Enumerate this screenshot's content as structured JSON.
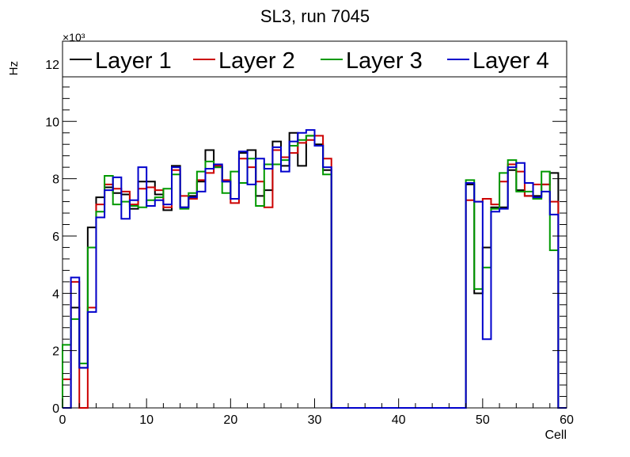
{
  "chart_data": {
    "type": "step-histogram",
    "title": "SL3, run 7045",
    "xlabel": "Cell",
    "ylabel": "Hz",
    "y_multiplier_label": "×10³",
    "xlim": [
      0,
      60
    ],
    "ylim": [
      0,
      12800
    ],
    "x_ticks": [
      0,
      10,
      20,
      30,
      40,
      50,
      60
    ],
    "x_tick_labels": [
      "0",
      "10",
      "20",
      "30",
      "40",
      "50",
      "60"
    ],
    "y_ticks": [
      0,
      2000,
      4000,
      6000,
      8000,
      10000,
      12000
    ],
    "y_tick_labels": [
      "0",
      "2",
      "4",
      "6",
      "8",
      "10",
      "12"
    ],
    "grid": false,
    "legend_position": "top, inside frame",
    "bin_edges": [
      0,
      1,
      2,
      3,
      4,
      5,
      6,
      7,
      8,
      9,
      10,
      11,
      12,
      13,
      14,
      15,
      16,
      17,
      18,
      19,
      20,
      21,
      22,
      23,
      24,
      25,
      26,
      27,
      28,
      29,
      30,
      31,
      32,
      33,
      34,
      35,
      36,
      37,
      38,
      39,
      40,
      41,
      42,
      43,
      44,
      45,
      46,
      47,
      48,
      49,
      50,
      51,
      52,
      53,
      54,
      55,
      56,
      57,
      58,
      59,
      60
    ],
    "series": [
      {
        "name": "Layer 1",
        "color": "#000000",
        "values": [
          0,
          3500,
          1400,
          6300,
          7350,
          7700,
          7500,
          7450,
          6950,
          7900,
          7900,
          7450,
          6900,
          8450,
          7000,
          7400,
          7900,
          9000,
          8400,
          7900,
          7300,
          8900,
          9000,
          7400,
          7600,
          9300,
          8450,
          9600,
          8450,
          9500,
          9200,
          8300,
          0,
          0,
          0,
          0,
          0,
          0,
          0,
          0,
          0,
          0,
          0,
          0,
          0,
          0,
          0,
          0,
          7800,
          4000,
          5600,
          7000,
          7000,
          8300,
          7600,
          7400,
          7400,
          7800,
          8200,
          0
        ]
      },
      {
        "name": "Layer 2",
        "color": "#cc0000",
        "values": [
          1000,
          4400,
          0,
          3500,
          7100,
          7800,
          7650,
          7550,
          7100,
          7650,
          7700,
          7600,
          7000,
          8300,
          7400,
          7300,
          7950,
          8200,
          8450,
          7950,
          7150,
          8700,
          8400,
          7900,
          7000,
          9000,
          8750,
          8900,
          9250,
          9350,
          9500,
          8700,
          0,
          0,
          0,
          0,
          0,
          0,
          0,
          0,
          0,
          0,
          0,
          0,
          0,
          0,
          0,
          0,
          7250,
          7200,
          7300,
          7100,
          7900,
          8500,
          8250,
          7400,
          7800,
          7800,
          7200,
          0
        ]
      },
      {
        "name": "Layer 3",
        "color": "#009900",
        "values": [
          2200,
          3100,
          1550,
          5600,
          6850,
          8100,
          7100,
          7200,
          7050,
          7000,
          7250,
          7350,
          7650,
          8150,
          6950,
          7500,
          8250,
          8600,
          8400,
          7500,
          8250,
          7850,
          8700,
          7050,
          8500,
          8500,
          8650,
          9150,
          9350,
          9500,
          9150,
          8150,
          0,
          0,
          0,
          0,
          0,
          0,
          0,
          0,
          0,
          0,
          0,
          0,
          0,
          0,
          0,
          0,
          7950,
          4150,
          4900,
          6950,
          8200,
          8650,
          7550,
          7550,
          7300,
          8250,
          5500,
          0
        ]
      },
      {
        "name": "Layer 4",
        "color": "#0000cc",
        "values": [
          0,
          4550,
          1400,
          3350,
          6650,
          7600,
          8050,
          6600,
          7250,
          8400,
          7050,
          7250,
          7100,
          8400,
          7000,
          7350,
          7550,
          8350,
          8500,
          7900,
          7300,
          8950,
          7800,
          8700,
          8350,
          9100,
          8250,
          9300,
          9600,
          9700,
          9150,
          8400,
          0,
          0,
          0,
          0,
          0,
          0,
          0,
          0,
          0,
          0,
          0,
          0,
          0,
          0,
          0,
          0,
          7850,
          7200,
          2400,
          6850,
          6950,
          8400,
          8550,
          7850,
          7350,
          7550,
          6750,
          0
        ]
      }
    ]
  }
}
